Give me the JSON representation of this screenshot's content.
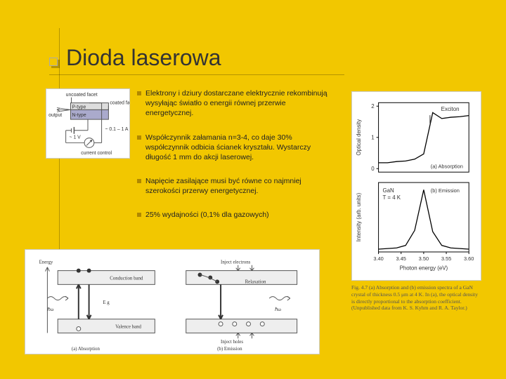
{
  "title": "Dioda laserowa",
  "paragraphs": [
    "Elektrony i dziury dostarczane elektrycznie rekombinują wysyłając światło o energii równej przerwie energetycznej.",
    "Współczynnik załamania n=3-4, co daje 30% współczynnik odbicia ścianek kryształu. Wystarczy długość 1 mm do akcji laserowej.",
    "Napięcie zasilające musi być równe co najmniej szerokości przerwy energetycznej.",
    "25% wydajności (0,1% dla gazowych)"
  ],
  "diode": {
    "labels": {
      "uncoated": "uncoated facet",
      "ptype": "P-type",
      "ntype": "N-type",
      "coated": "coated facet",
      "output": "output",
      "current": "current control",
      "amps": "~ 0.1 – 1 A",
      "volts": "~ 1 V"
    }
  },
  "bands": {
    "labels": {
      "energy": "Energy",
      "conduction": "Conduction band",
      "valence": "Valence band",
      "inject_e": "Inject electrons",
      "inject_h": "Inject holes",
      "relax": "Relaxation",
      "eg": "E g",
      "hw": "ℏω",
      "absorption": "(a) Absorption",
      "emission": "(b) Emission"
    }
  },
  "spectra": {
    "ylabel_top": "Optical density",
    "ylabel_bot": "Intensity (arb. units)",
    "xlabel": "Photon energy (eV)",
    "exciton": "Exciton",
    "gan": "GaN",
    "temp": "T = 4 K",
    "a": "(a) Absorption",
    "b": "(b) Emission",
    "xticks": [
      "3.40",
      "3.45",
      "3.50",
      "3.55",
      "3.60"
    ],
    "yticks_top": [
      "0",
      "1",
      "2"
    ],
    "top_curve_y": [
      0.1,
      0.1,
      0.12,
      0.13,
      0.16,
      0.25,
      0.95,
      0.85,
      0.87,
      0.88,
      0.9
    ],
    "bot_curve_y": [
      0.0,
      0.01,
      0.02,
      0.06,
      0.3,
      0.95,
      0.28,
      0.06,
      0.02,
      0.01,
      0.0
    ],
    "colors": {
      "bg": "#ffffff",
      "axis": "#000000",
      "curve": "#000000"
    }
  },
  "caption": "Fig. 4.7 (a) Absorption and (b) emission spectra of a GaN crystal of thickness 0.5 μm at 4 K. In (a), the optical density is directly proportional to the absorption coefficient. (Unpublished data from K. S. Kyhm and R. A. Taylor.)"
}
